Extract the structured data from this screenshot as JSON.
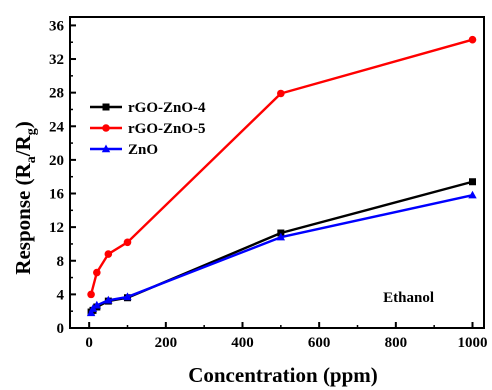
{
  "chart_data": {
    "type": "line",
    "xlabel": "Concentration (ppm)",
    "ylabel": "Response (Ra/Rg)",
    "ylabel_parts": {
      "base": "Response (R",
      "sub1": "a",
      "mid": "/R",
      "sub2": "g",
      "end": ")"
    },
    "xlim": [
      -50,
      1030
    ],
    "ylim": [
      0,
      37
    ],
    "xticks": [
      0,
      200,
      400,
      600,
      800,
      1000
    ],
    "yticks": [
      0,
      4,
      8,
      12,
      16,
      20,
      24,
      28,
      32,
      36
    ],
    "legend_position": "upper-left",
    "annotation": "Ethanol",
    "series": [
      {
        "name": "rGO-ZnO-4",
        "color": "#000000",
        "marker": "square",
        "x": [
          5,
          10,
          20,
          50,
          100,
          500,
          1000
        ],
        "y": [
          1.9,
          2.1,
          2.5,
          3.2,
          3.6,
          11.3,
          17.4
        ]
      },
      {
        "name": "rGO-ZnO-5",
        "color": "#ff0000",
        "marker": "circle",
        "x": [
          5,
          20,
          50,
          100,
          500,
          1000
        ],
        "y": [
          4.0,
          6.6,
          8.8,
          10.2,
          27.9,
          34.3
        ]
      },
      {
        "name": "ZnO",
        "color": "#0000ff",
        "marker": "triangle",
        "x": [
          5,
          10,
          20,
          50,
          100,
          500,
          1000
        ],
        "y": [
          1.8,
          2.3,
          2.7,
          3.3,
          3.7,
          10.8,
          15.8
        ]
      }
    ]
  }
}
